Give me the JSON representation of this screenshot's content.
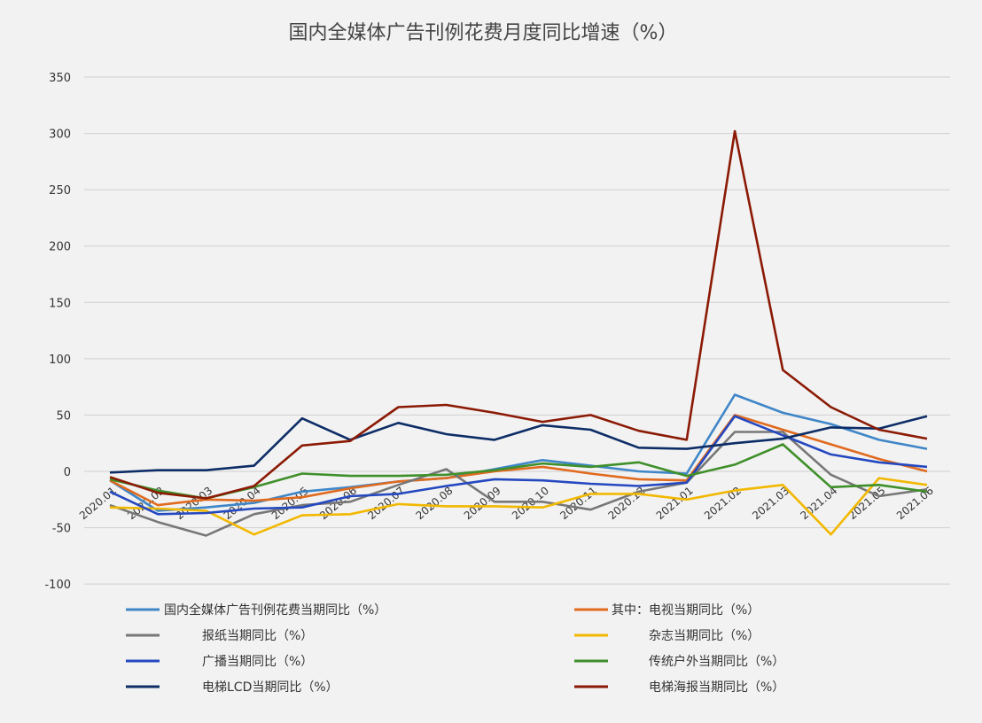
{
  "chart_data": {
    "type": "line",
    "title": "国内全媒体广告刊例花费月度同比增速（%）",
    "xlabel": "",
    "ylabel": "",
    "ylim": [
      -100,
      350
    ],
    "yticks": [
      -100,
      -50,
      0,
      50,
      100,
      150,
      200,
      250,
      300,
      350
    ],
    "grid": true,
    "legend_position": "bottom",
    "categories": [
      "2020.01",
      "2020.02",
      "2020.03",
      "2020.04",
      "2020.05",
      "2020.06",
      "2020.07",
      "2020.08",
      "2020.09",
      "2020.10",
      "2020.11",
      "2020.12",
      "2021.01",
      "2021.02",
      "2021.03",
      "2021.04",
      "2021.05",
      "2021.06"
    ],
    "series": [
      {
        "name": "国内全媒体广告刊例花费当期同比（%）",
        "color": "#3f86c8",
        "values": [
          -8,
          -35,
          -32,
          -28,
          -18,
          -14,
          -9,
          -6,
          2,
          10,
          5,
          0,
          -2,
          68,
          52,
          42,
          28,
          20
        ]
      },
      {
        "name": "其中：电视当期同比（%）",
        "color": "#e06a1e",
        "values": [
          -8,
          -30,
          -25,
          -26,
          -23,
          -15,
          -9,
          -6,
          0,
          4,
          -2,
          -7,
          -8,
          50,
          37,
          24,
          11,
          0
        ]
      },
      {
        "name": "报纸当期同比（%）",
        "color": "#777777",
        "values": [
          -30,
          -45,
          -57,
          -38,
          -30,
          -27,
          -12,
          2,
          -27,
          -27,
          -34,
          -18,
          -10,
          35,
          35,
          -3,
          -22,
          -16
        ]
      },
      {
        "name": "杂志当期同比（%）",
        "color": "#f2b800",
        "values": [
          -32,
          -33,
          -35,
          -56,
          -39,
          -38,
          -29,
          -31,
          -31,
          -32,
          -20,
          -20,
          -25,
          -17,
          -12,
          -56,
          -6,
          -12
        ]
      },
      {
        "name": "广播当期同比（%）",
        "color": "#2448c0",
        "values": [
          -18,
          -38,
          -37,
          -33,
          -32,
          -22,
          -20,
          -13,
          -7,
          -8,
          -11,
          -13,
          -10,
          49,
          32,
          15,
          8,
          4
        ]
      },
      {
        "name": "传统户外当期同比（%）",
        "color": "#3f8f2a",
        "values": [
          -7,
          -17,
          -24,
          -14,
          -2,
          -4,
          -4,
          -3,
          1,
          7,
          4,
          8,
          -4,
          6,
          24,
          -14,
          -12,
          -18
        ]
      },
      {
        "name": "电梯LCD当期同比（%）",
        "color": "#0d2d66",
        "values": [
          -1,
          1,
          1,
          5,
          47,
          28,
          43,
          33,
          28,
          41,
          37,
          21,
          20,
          25,
          29,
          39,
          38,
          49
        ]
      },
      {
        "name": "电梯海报当期同比（%）",
        "color": "#8b1a05",
        "values": [
          -5,
          -19,
          -24,
          -13,
          23,
          27,
          57,
          59,
          52,
          44,
          50,
          36,
          28,
          302,
          90,
          57,
          37,
          29
        ]
      }
    ]
  }
}
